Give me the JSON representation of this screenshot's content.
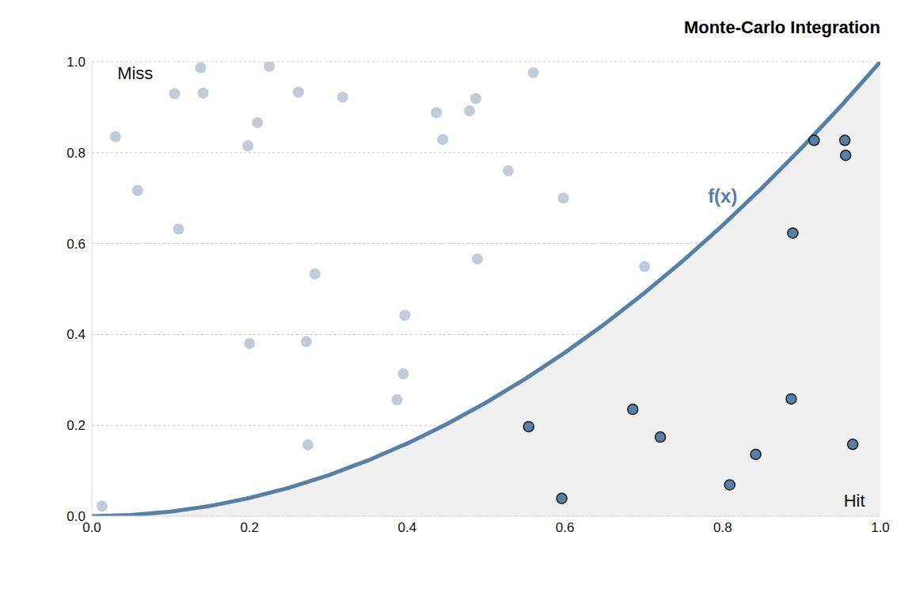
{
  "chart_data": {
    "type": "scatter",
    "title": "Monte-Carlo Integration",
    "xlim": [
      0,
      1
    ],
    "ylim": [
      0,
      1
    ],
    "xticks": [
      {
        "value": 0,
        "label": "0.0"
      },
      {
        "value": 0.2,
        "label": "0.2"
      },
      {
        "value": 0.4,
        "label": "0.4"
      },
      {
        "value": 0.6,
        "label": "0.6"
      },
      {
        "value": 0.8,
        "label": "0.8"
      },
      {
        "value": 1,
        "label": "1.0"
      }
    ],
    "yticks": [
      {
        "value": 0,
        "label": "0.0"
      },
      {
        "value": 0.2,
        "label": "0.2"
      },
      {
        "value": 0.4,
        "label": "0.4"
      },
      {
        "value": 0.6,
        "label": "0.6"
      },
      {
        "value": 0.8,
        "label": "0.8"
      },
      {
        "value": 1,
        "label": "1.0"
      }
    ],
    "grid": true,
    "series": [
      {
        "name": "f(x)",
        "type": "line",
        "color": "#5580a8",
        "x": [
          0,
          0.05,
          0.1,
          0.15,
          0.2,
          0.25,
          0.3,
          0.35,
          0.4,
          0.45,
          0.5,
          0.55,
          0.6,
          0.65,
          0.7,
          0.75,
          0.8,
          0.85,
          0.9,
          0.95,
          1
        ],
        "values": [
          0,
          0.0025,
          0.01,
          0.0225,
          0.04,
          0.0625,
          0.09,
          0.1225,
          0.16,
          0.2025,
          0.25,
          0.3025,
          0.36,
          0.4225,
          0.49,
          0.5625,
          0.64,
          0.7225,
          0.81,
          0.9025,
          1
        ]
      },
      {
        "name": "Miss",
        "type": "scatter",
        "color": "#c3ccd6",
        "marker": "circle",
        "x": [
          0.013,
          0.03,
          0.058,
          0.105,
          0.11,
          0.138,
          0.141,
          0.198,
          0.2,
          0.21,
          0.225,
          0.262,
          0.272,
          0.274,
          0.283,
          0.318,
          0.387,
          0.395,
          0.397,
          0.437,
          0.445,
          0.479,
          0.487,
          0.489,
          0.528,
          0.56,
          0.598,
          0.701
        ],
        "values": [
          0.022,
          0.835,
          0.717,
          0.93,
          0.632,
          0.987,
          0.931,
          0.815,
          0.38,
          0.866,
          0.99,
          0.933,
          0.384,
          0.157,
          0.533,
          0.922,
          0.256,
          0.313,
          0.442,
          0.888,
          0.829,
          0.892,
          0.919,
          0.566,
          0.76,
          0.976,
          0.7,
          0.549
        ]
      },
      {
        "name": "Hit",
        "type": "scatter",
        "color": "#5580a8",
        "marker": "outlined_circle",
        "x": [
          0.554,
          0.596,
          0.686,
          0.721,
          0.809,
          0.842,
          0.887,
          0.889,
          0.916,
          0.955,
          0.956,
          0.965
        ],
        "values": [
          0.197,
          0.039,
          0.235,
          0.174,
          0.069,
          0.136,
          0.258,
          0.623,
          0.827,
          0.827,
          0.794,
          0.158
        ]
      }
    ]
  }
}
